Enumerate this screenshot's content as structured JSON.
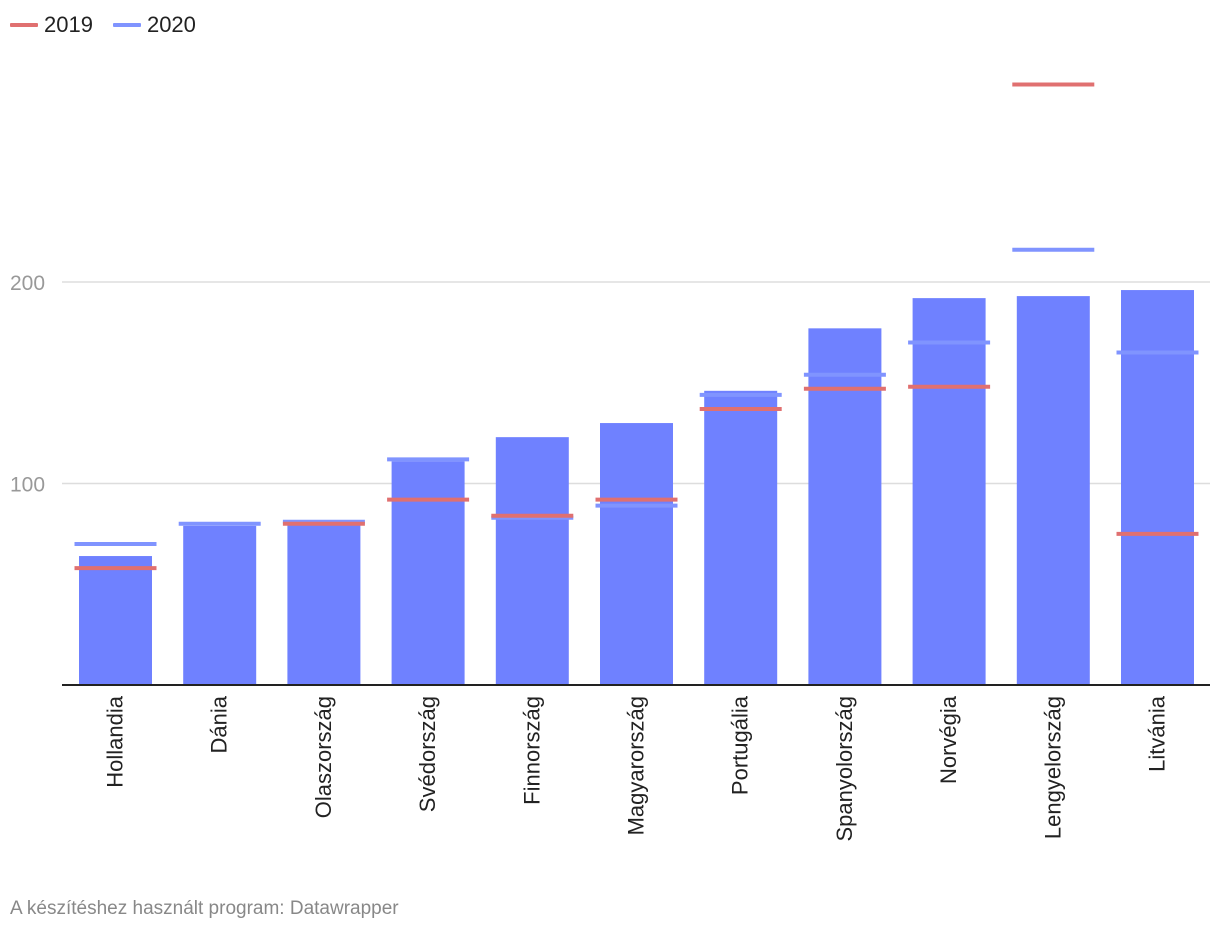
{
  "chart_data": {
    "type": "bar",
    "categories": [
      "Hollandia",
      "Dánia",
      "Olaszország",
      "Svédország",
      "Finnország",
      "Magyarország",
      "Portugália",
      "Spanyolország",
      "Norvégia",
      "Lengyelország",
      "Litvánia"
    ],
    "bar_values": [
      64,
      79,
      81,
      111,
      123,
      130,
      146,
      177,
      192,
      193,
      196
    ],
    "series": [
      {
        "name": "2019",
        "color": "#e07070",
        "values": [
          58,
          null,
          80,
          92,
          84,
          92,
          137,
          147,
          148,
          298,
          75
        ]
      },
      {
        "name": "2020",
        "color": "#8094ff",
        "values": [
          70,
          80,
          81,
          112,
          83,
          89,
          144,
          154,
          170,
          216,
          165
        ]
      }
    ],
    "bar_color": "#6f81ff",
    "ylim": [
      0,
      300
    ],
    "yticks": [
      100,
      200
    ],
    "grid": true,
    "legend_position": "top-left"
  },
  "source_text": "A készítéshez használt program: Datawrapper"
}
